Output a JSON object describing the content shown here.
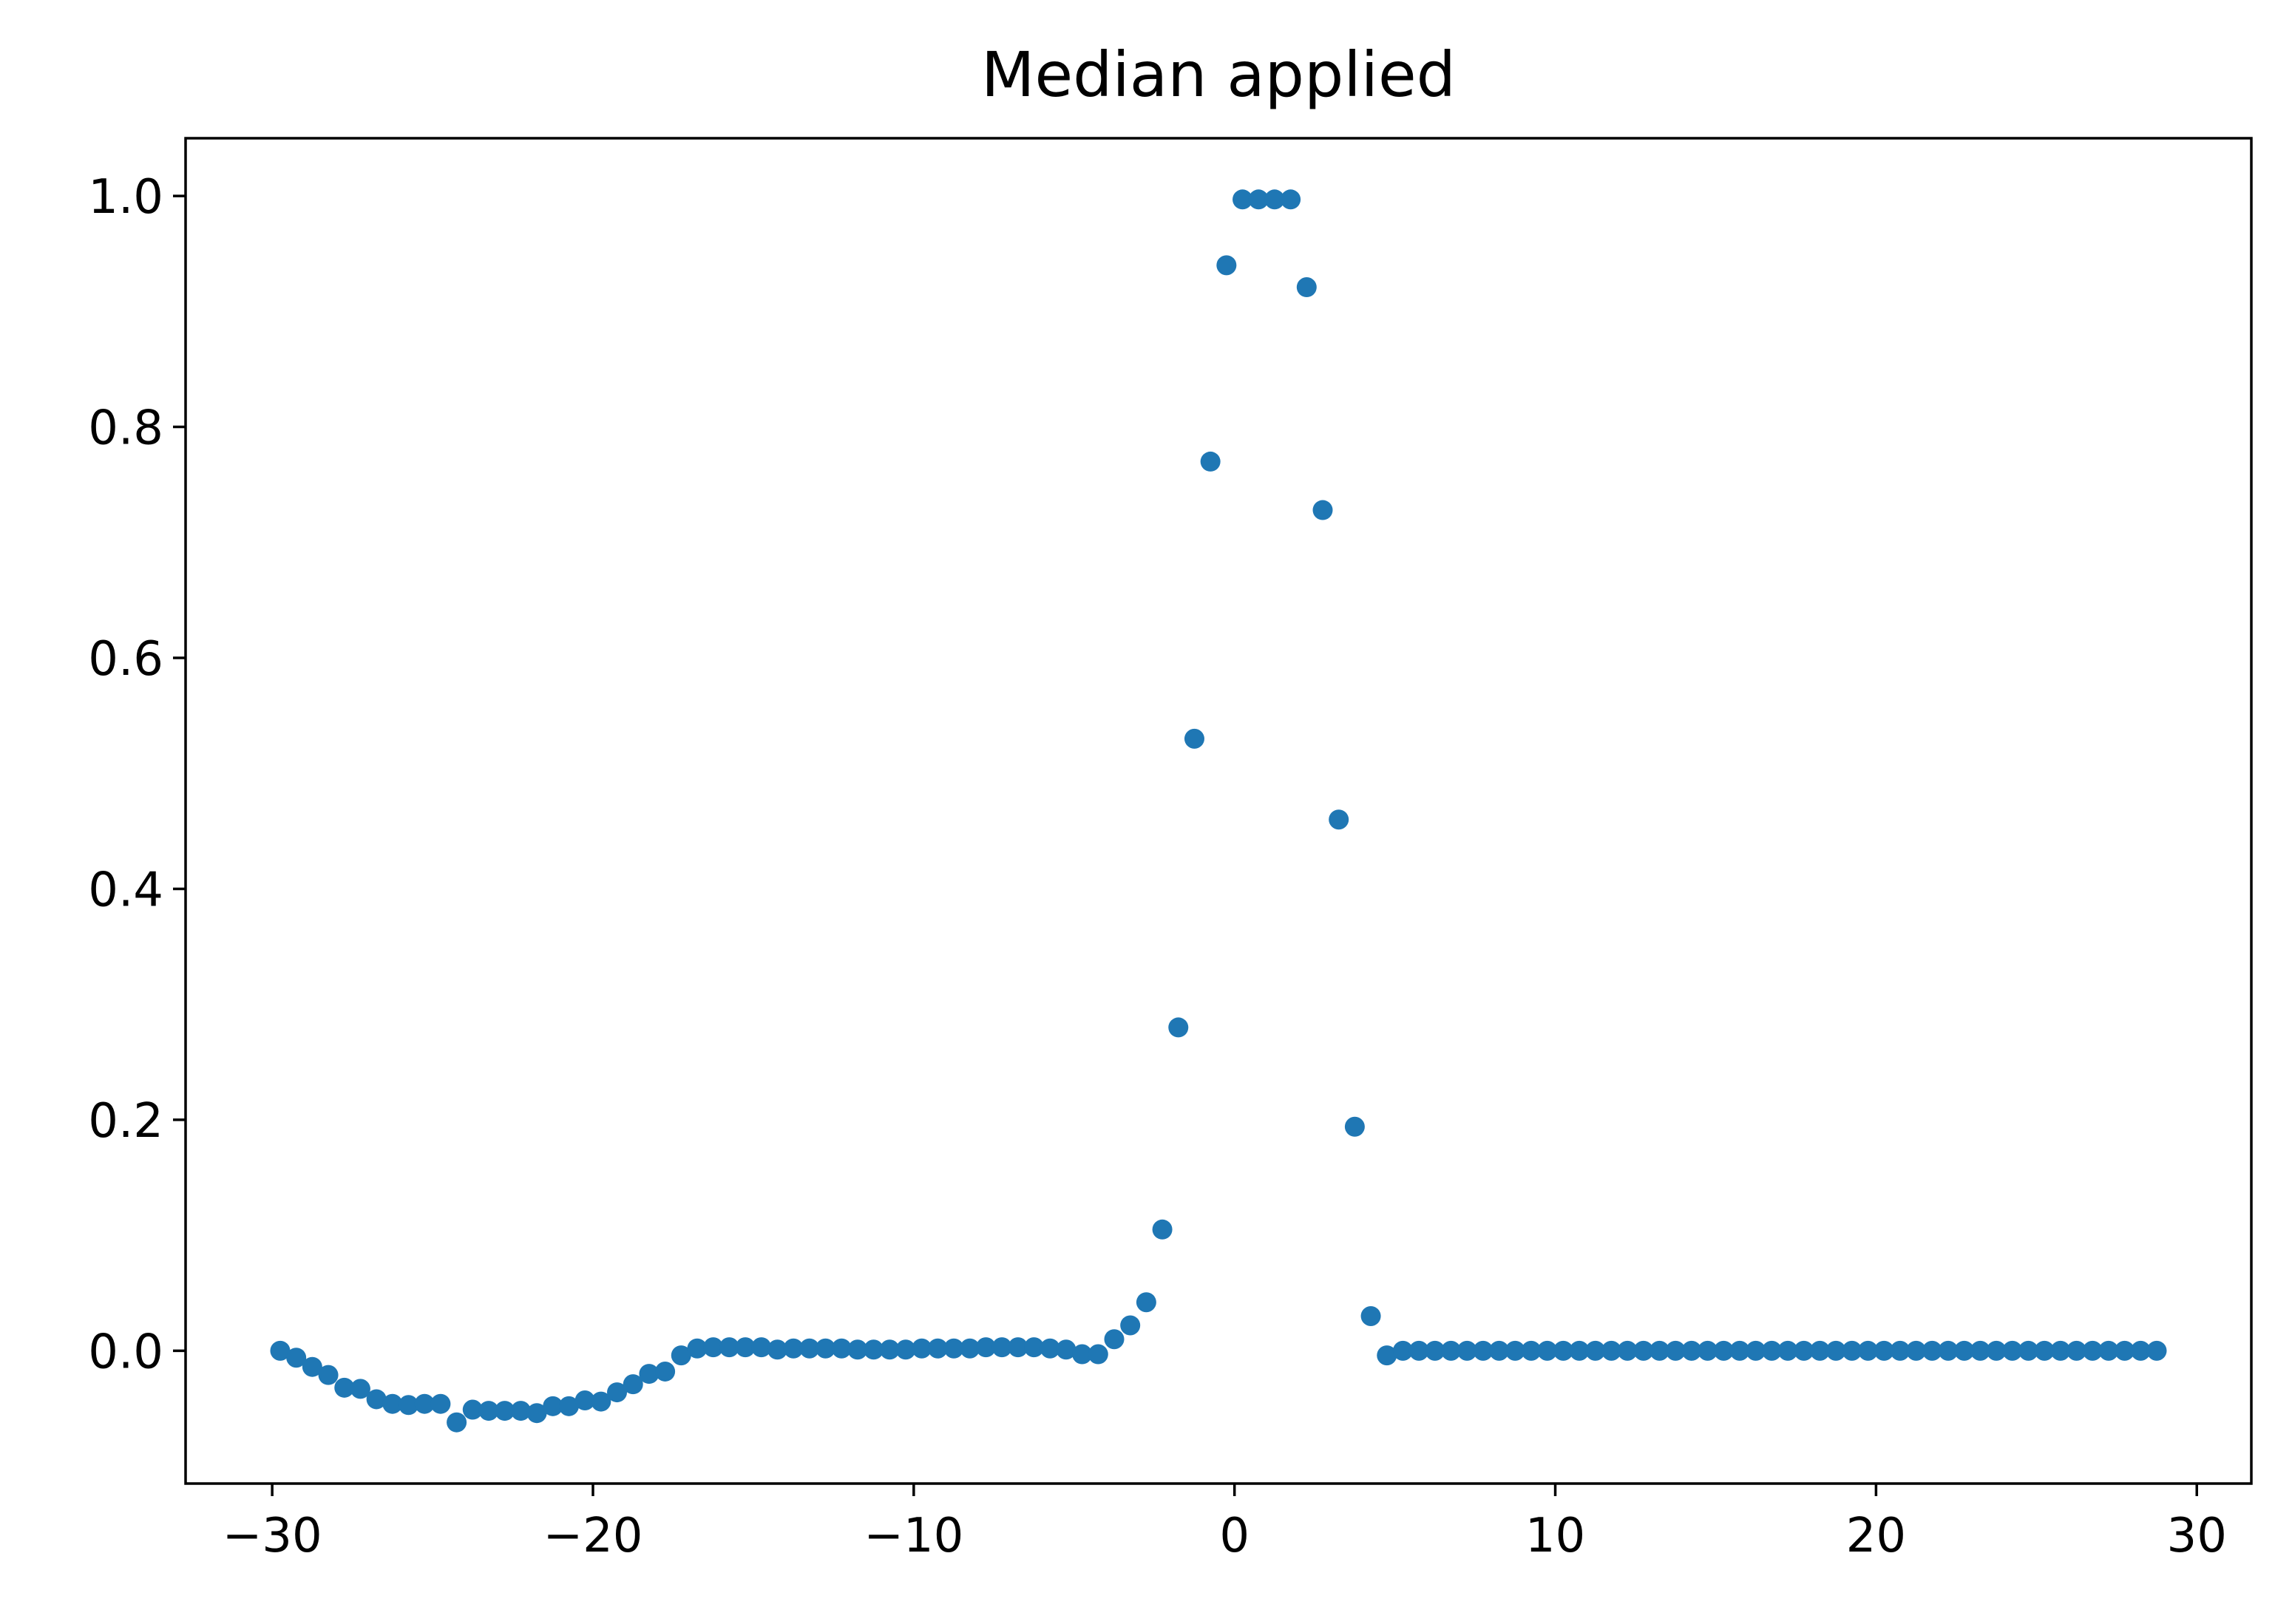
{
  "chart_data": {
    "type": "scatter",
    "title": "Median applied",
    "xlabel": "",
    "ylabel": "",
    "xlim": [
      -32.7,
      31.7
    ],
    "ylim": [
      -0.115,
      1.05
    ],
    "xticks": [
      -30,
      -20,
      -10,
      0,
      10,
      20,
      30
    ],
    "xtick_labels": [
      "−30",
      "−20",
      "−10",
      "0",
      "10",
      "20",
      "30"
    ],
    "yticks": [
      0.0,
      0.2,
      0.4,
      0.6,
      0.8,
      1.0
    ],
    "ytick_labels": [
      "0.0",
      "0.2",
      "0.4",
      "0.6",
      "0.8",
      "1.0"
    ],
    "grid": false,
    "legend": "none",
    "color": "#1f77b4",
    "series": [
      {
        "x": [
          -29.75,
          -29.25,
          -28.75,
          -28.25,
          -27.75,
          -27.25,
          -26.75,
          -26.25,
          -25.75,
          -25.25,
          -24.75,
          -24.25,
          -23.75,
          -23.25,
          -22.75,
          -22.25,
          -21.75,
          -21.25,
          -20.75,
          -20.25,
          -19.75,
          -19.25,
          -18.75,
          -18.25,
          -17.75,
          -17.25,
          -16.75,
          -16.25,
          -15.75,
          -15.25,
          -14.75,
          -14.25,
          -13.75,
          -13.25,
          -12.75,
          -12.25,
          -11.75,
          -11.25,
          -10.75,
          -10.25,
          -9.75,
          -9.25,
          -8.75,
          -8.25,
          -7.75,
          -7.25,
          -6.75,
          -6.25,
          -5.75,
          -5.25,
          -4.75,
          -4.25,
          -3.75,
          -3.25,
          -2.75,
          -2.25,
          -1.75,
          -1.25,
          -0.75,
          -0.25,
          0.25,
          0.75,
          1.25,
          1.75,
          2.25,
          2.75,
          3.25,
          3.75,
          4.25,
          4.75,
          5.25,
          5.75,
          6.25,
          6.75,
          7.25,
          7.75,
          8.25,
          8.75,
          9.25,
          9.75,
          10.25,
          10.75,
          11.25,
          11.75,
          12.25,
          12.75,
          13.25,
          13.75,
          14.25,
          14.75,
          15.25,
          15.75,
          16.25,
          16.75,
          17.25,
          17.75,
          18.25,
          18.75,
          19.25,
          19.75,
          20.25,
          20.75,
          21.25,
          21.75,
          22.25,
          22.75,
          23.25,
          23.75,
          24.25,
          24.75,
          25.25,
          25.75,
          26.25,
          26.75,
          27.25,
          27.75,
          28.25,
          28.75
        ],
        "y": [
          0.0,
          -0.006,
          -0.014,
          -0.021,
          -0.032,
          -0.033,
          -0.042,
          -0.046,
          -0.047,
          -0.046,
          -0.046,
          -0.062,
          -0.051,
          -0.052,
          -0.052,
          -0.052,
          -0.054,
          -0.048,
          -0.048,
          -0.043,
          -0.044,
          -0.036,
          -0.029,
          -0.02,
          -0.018,
          -0.004,
          0.002,
          0.003,
          0.003,
          0.003,
          0.003,
          0.001,
          0.002,
          0.002,
          0.002,
          0.002,
          0.001,
          0.001,
          0.001,
          0.001,
          0.002,
          0.002,
          0.002,
          0.002,
          0.003,
          0.003,
          0.003,
          0.003,
          0.002,
          0.001,
          -0.003,
          -0.003,
          0.01,
          0.022,
          0.042,
          0.105,
          0.28,
          0.53,
          0.77,
          0.94,
          0.997,
          0.997,
          0.997,
          0.997,
          0.921,
          0.728,
          0.46,
          0.194,
          0.03,
          -0.004,
          0.0,
          0.0,
          0.0,
          0.0,
          0.0,
          0.0,
          0.0,
          0.0,
          0.0,
          0.0,
          0.0,
          0.0,
          0.0,
          0.0,
          0.0,
          0.0,
          0.0,
          0.0,
          0.0,
          0.0,
          0.0,
          0.0,
          0.0,
          0.0,
          0.0,
          0.0,
          0.0,
          0.0,
          0.0,
          0.0,
          0.0,
          0.0,
          0.0,
          0.0,
          0.0,
          0.0,
          0.0,
          0.0,
          0.0,
          0.0,
          0.0,
          0.0,
          0.0,
          0.0,
          0.0,
          0.0,
          0.0,
          0.0
        ]
      }
    ]
  }
}
